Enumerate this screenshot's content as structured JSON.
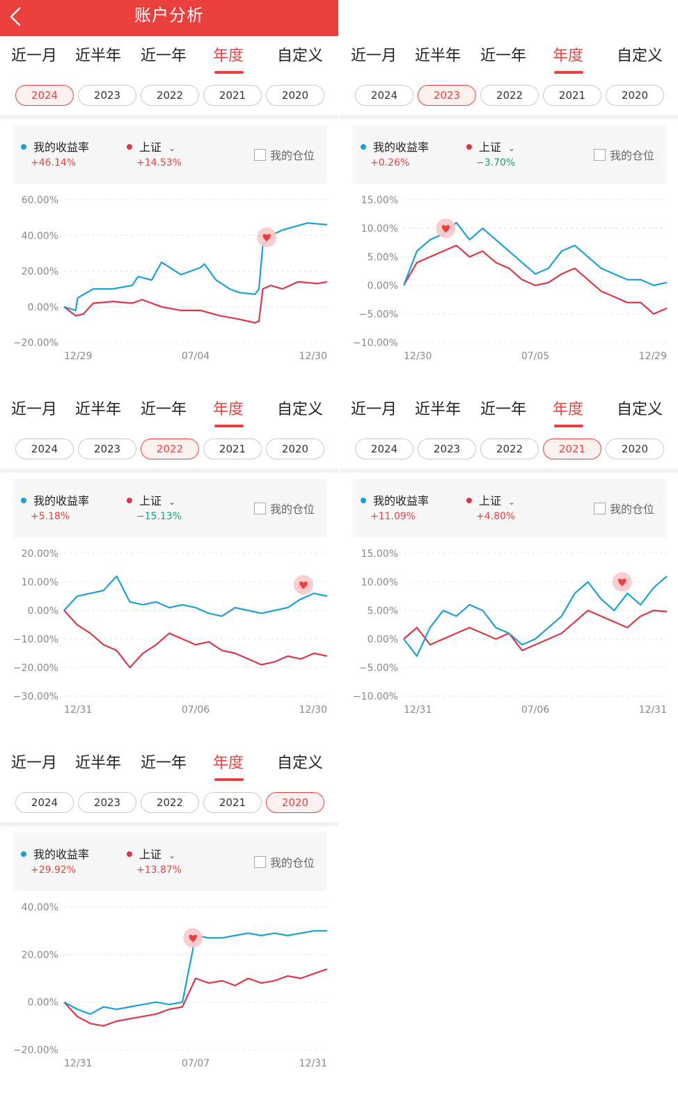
{
  "header": {
    "title": "账户分析",
    "back_icon": "chevron-left-icon"
  },
  "tabs": [
    "近一月",
    "近半年",
    "近一年",
    "年度",
    "自定义"
  ],
  "active_tab": 3,
  "years": [
    "2024",
    "2023",
    "2022",
    "2021",
    "2020"
  ],
  "legend": {
    "my_label": "我的收益率",
    "index_label": "上证",
    "position_label": "我的仓位"
  },
  "colors": {
    "brand": "#e9403e",
    "my_series": "#1a9fd6",
    "index_series": "#dc3545",
    "positive": "#e9403e",
    "negative": "#14a36a"
  },
  "panels": [
    {
      "active_year": 0,
      "my_return": "+46.14%",
      "index_return": "+14.53%",
      "index_sign": "pos",
      "chart_data": {
        "type": "line",
        "y_ticks": [
          "60.00%",
          "40.00%",
          "20.00%",
          "0.00%",
          "−20.00%"
        ],
        "ylim": [
          -20,
          60
        ],
        "x_ticks": [
          "12/29",
          "07/04",
          "12/30"
        ],
        "series": [
          {
            "name": "我的收益率",
            "points": [
              [
                0,
                0
              ],
              [
                0.06,
                -2
              ],
              [
                0.07,
                5
              ],
              [
                0.15,
                10
              ],
              [
                0.25,
                10
              ],
              [
                0.35,
                12
              ],
              [
                0.38,
                17
              ],
              [
                0.45,
                15
              ],
              [
                0.5,
                25
              ],
              [
                0.6,
                18
              ],
              [
                0.7,
                22
              ],
              [
                0.72,
                24
              ],
              [
                0.78,
                15
              ],
              [
                0.85,
                10
              ],
              [
                0.9,
                8
              ],
              [
                0.98,
                7
              ],
              [
                1.0,
                10
              ],
              [
                1.02,
                35
              ],
              [
                1.06,
                40
              ],
              [
                1.12,
                43
              ],
              [
                1.25,
                47
              ],
              [
                1.35,
                46
              ]
            ]
          },
          {
            "name": "上证",
            "points": [
              [
                0,
                0
              ],
              [
                0.06,
                -5
              ],
              [
                0.1,
                -4
              ],
              [
                0.15,
                2
              ],
              [
                0.25,
                3
              ],
              [
                0.35,
                2
              ],
              [
                0.4,
                4
              ],
              [
                0.5,
                0
              ],
              [
                0.6,
                -2
              ],
              [
                0.7,
                -2
              ],
              [
                0.8,
                -5
              ],
              [
                0.9,
                -7
              ],
              [
                0.98,
                -9
              ],
              [
                1.0,
                -8
              ],
              [
                1.02,
                10
              ],
              [
                1.06,
                12
              ],
              [
                1.12,
                10
              ],
              [
                1.2,
                14
              ],
              [
                1.3,
                13
              ],
              [
                1.35,
                14
              ]
            ]
          }
        ],
        "marker_at": [
          1.04,
          39
        ]
      }
    },
    {
      "active_year": 1,
      "my_return": "+0.26%",
      "index_return": "−3.70%",
      "index_sign": "neg",
      "chart_data": {
        "type": "line",
        "y_ticks": [
          "15.00%",
          "10.00%",
          "5.00%",
          "0.00%",
          "−5.00%",
          "−10.00%"
        ],
        "ylim": [
          -10,
          15
        ],
        "x_ticks": [
          "12/30",
          "07/05",
          "12/29"
        ],
        "series": [
          {
            "name": "我的收益率",
            "points": [
              [
                0,
                0
              ],
              [
                0.05,
                6
              ],
              [
                0.1,
                8
              ],
              [
                0.15,
                9
              ],
              [
                0.2,
                11
              ],
              [
                0.25,
                8
              ],
              [
                0.3,
                10
              ],
              [
                0.35,
                8
              ],
              [
                0.4,
                6
              ],
              [
                0.45,
                4
              ],
              [
                0.5,
                2
              ],
              [
                0.55,
                3
              ],
              [
                0.6,
                6
              ],
              [
                0.65,
                7
              ],
              [
                0.7,
                5
              ],
              [
                0.75,
                3
              ],
              [
                0.8,
                2
              ],
              [
                0.85,
                1
              ],
              [
                0.9,
                1
              ],
              [
                0.95,
                0
              ],
              [
                1.0,
                0.5
              ]
            ]
          },
          {
            "name": "上证",
            "points": [
              [
                0,
                0
              ],
              [
                0.05,
                4
              ],
              [
                0.1,
                5
              ],
              [
                0.15,
                6
              ],
              [
                0.2,
                7
              ],
              [
                0.25,
                5
              ],
              [
                0.3,
                6
              ],
              [
                0.35,
                4
              ],
              [
                0.4,
                3
              ],
              [
                0.45,
                1
              ],
              [
                0.5,
                0
              ],
              [
                0.55,
                0.5
              ],
              [
                0.6,
                2
              ],
              [
                0.65,
                3
              ],
              [
                0.7,
                1
              ],
              [
                0.75,
                -1
              ],
              [
                0.8,
                -2
              ],
              [
                0.85,
                -3
              ],
              [
                0.9,
                -3
              ],
              [
                0.95,
                -5
              ],
              [
                1.0,
                -4
              ]
            ]
          }
        ],
        "marker_at": [
          0.16,
          10
        ]
      }
    },
    {
      "active_year": 2,
      "my_return": "+5.18%",
      "index_return": "−15.13%",
      "index_sign": "neg",
      "chart_data": {
        "type": "line",
        "y_ticks": [
          "20.00%",
          "10.00%",
          "0.00%",
          "−10.00%",
          "−20.00%",
          "−30.00%"
        ],
        "ylim": [
          -30,
          20
        ],
        "x_ticks": [
          "12/31",
          "07/06",
          "12/30"
        ],
        "series": [
          {
            "name": "我的收益率",
            "points": [
              [
                0,
                0
              ],
              [
                0.05,
                5
              ],
              [
                0.1,
                6
              ],
              [
                0.15,
                7
              ],
              [
                0.2,
                12
              ],
              [
                0.25,
                3
              ],
              [
                0.3,
                2
              ],
              [
                0.35,
                3
              ],
              [
                0.4,
                1
              ],
              [
                0.45,
                2
              ],
              [
                0.5,
                1
              ],
              [
                0.55,
                -1
              ],
              [
                0.6,
                -2
              ],
              [
                0.65,
                1
              ],
              [
                0.7,
                0
              ],
              [
                0.75,
                -1
              ],
              [
                0.8,
                0
              ],
              [
                0.85,
                1
              ],
              [
                0.9,
                4
              ],
              [
                0.95,
                6
              ],
              [
                1.0,
                5
              ]
            ]
          },
          {
            "name": "上证",
            "points": [
              [
                0,
                0
              ],
              [
                0.05,
                -5
              ],
              [
                0.1,
                -8
              ],
              [
                0.15,
                -12
              ],
              [
                0.2,
                -14
              ],
              [
                0.25,
                -20
              ],
              [
                0.3,
                -15
              ],
              [
                0.35,
                -12
              ],
              [
                0.4,
                -8
              ],
              [
                0.45,
                -10
              ],
              [
                0.5,
                -12
              ],
              [
                0.55,
                -11
              ],
              [
                0.6,
                -14
              ],
              [
                0.65,
                -15
              ],
              [
                0.7,
                -17
              ],
              [
                0.75,
                -19
              ],
              [
                0.8,
                -18
              ],
              [
                0.85,
                -16
              ],
              [
                0.9,
                -17
              ],
              [
                0.95,
                -15
              ],
              [
                1.0,
                -16
              ]
            ]
          }
        ],
        "marker_at": [
          0.91,
          9
        ]
      }
    },
    {
      "active_year": 3,
      "my_return": "+11.09%",
      "index_return": "+4.80%",
      "index_sign": "pos",
      "chart_data": {
        "type": "line",
        "y_ticks": [
          "15.00%",
          "10.00%",
          "5.00%",
          "0.00%",
          "−5.00%",
          "−10.00%"
        ],
        "ylim": [
          -10,
          15
        ],
        "x_ticks": [
          "12/31",
          "07/06",
          "12/31"
        ],
        "series": [
          {
            "name": "我的收益率",
            "points": [
              [
                0,
                0
              ],
              [
                0.05,
                -3
              ],
              [
                0.1,
                2
              ],
              [
                0.15,
                5
              ],
              [
                0.2,
                4
              ],
              [
                0.25,
                6
              ],
              [
                0.3,
                5
              ],
              [
                0.35,
                2
              ],
              [
                0.4,
                1
              ],
              [
                0.45,
                -1
              ],
              [
                0.5,
                0
              ],
              [
                0.55,
                2
              ],
              [
                0.6,
                4
              ],
              [
                0.65,
                8
              ],
              [
                0.7,
                10
              ],
              [
                0.75,
                7
              ],
              [
                0.8,
                5
              ],
              [
                0.85,
                8
              ],
              [
                0.9,
                6
              ],
              [
                0.95,
                9
              ],
              [
                1.0,
                11
              ]
            ]
          },
          {
            "name": "上证",
            "points": [
              [
                0,
                0
              ],
              [
                0.05,
                2
              ],
              [
                0.1,
                -1
              ],
              [
                0.15,
                0
              ],
              [
                0.2,
                1
              ],
              [
                0.25,
                2
              ],
              [
                0.3,
                1
              ],
              [
                0.35,
                0
              ],
              [
                0.4,
                1
              ],
              [
                0.45,
                -2
              ],
              [
                0.5,
                -1
              ],
              [
                0.55,
                0
              ],
              [
                0.6,
                1
              ],
              [
                0.65,
                3
              ],
              [
                0.7,
                5
              ],
              [
                0.75,
                4
              ],
              [
                0.8,
                3
              ],
              [
                0.85,
                2
              ],
              [
                0.9,
                4
              ],
              [
                0.95,
                5
              ],
              [
                1.0,
                4.8
              ]
            ]
          }
        ],
        "marker_at": [
          0.83,
          10
        ]
      }
    },
    {
      "active_year": 4,
      "my_return": "+29.92%",
      "index_return": "+13.87%",
      "index_sign": "pos",
      "chart_data": {
        "type": "line",
        "y_ticks": [
          "40.00%",
          "20.00%",
          "0.00%",
          "−20.00%"
        ],
        "ylim": [
          -20,
          40
        ],
        "x_ticks": [
          "12/31",
          "07/07",
          "12/31"
        ],
        "series": [
          {
            "name": "我的收益率",
            "points": [
              [
                0,
                0
              ],
              [
                0.05,
                -3
              ],
              [
                0.1,
                -5
              ],
              [
                0.15,
                -2
              ],
              [
                0.2,
                -3
              ],
              [
                0.25,
                -2
              ],
              [
                0.3,
                -1
              ],
              [
                0.35,
                0
              ],
              [
                0.4,
                -1
              ],
              [
                0.45,
                0
              ],
              [
                0.5,
                28
              ],
              [
                0.55,
                27
              ],
              [
                0.6,
                27
              ],
              [
                0.65,
                28
              ],
              [
                0.7,
                29
              ],
              [
                0.75,
                28
              ],
              [
                0.8,
                29
              ],
              [
                0.85,
                28
              ],
              [
                0.9,
                29
              ],
              [
                0.95,
                30
              ],
              [
                1.0,
                30
              ]
            ]
          },
          {
            "name": "上证",
            "points": [
              [
                0,
                0
              ],
              [
                0.05,
                -6
              ],
              [
                0.1,
                -9
              ],
              [
                0.15,
                -10
              ],
              [
                0.2,
                -8
              ],
              [
                0.25,
                -7
              ],
              [
                0.3,
                -6
              ],
              [
                0.35,
                -5
              ],
              [
                0.4,
                -3
              ],
              [
                0.45,
                -2
              ],
              [
                0.5,
                10
              ],
              [
                0.55,
                8
              ],
              [
                0.6,
                9
              ],
              [
                0.65,
                7
              ],
              [
                0.7,
                10
              ],
              [
                0.75,
                8
              ],
              [
                0.8,
                9
              ],
              [
                0.85,
                11
              ],
              [
                0.9,
                10
              ],
              [
                0.95,
                12
              ],
              [
                1.0,
                13.9
              ]
            ]
          }
        ],
        "marker_at": [
          0.49,
          27
        ]
      }
    }
  ]
}
